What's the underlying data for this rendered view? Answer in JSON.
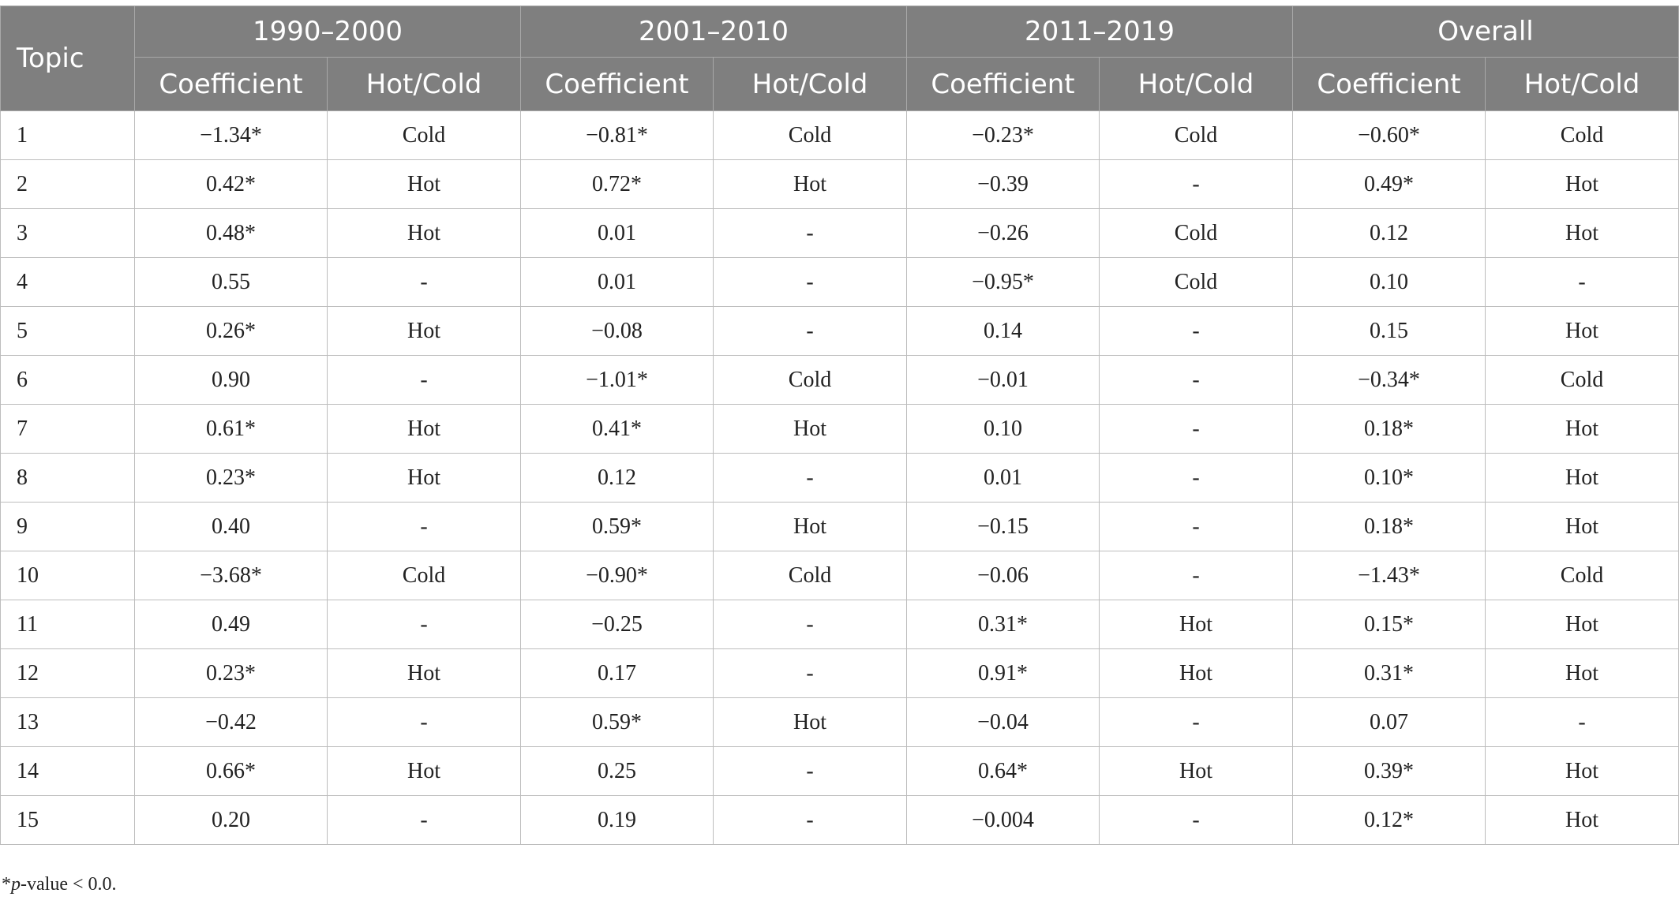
{
  "table": {
    "topic_header": "Topic",
    "groups": [
      "1990–2000",
      "2001–2010",
      "2011–2019",
      "Overall"
    ],
    "subheaders": [
      "Coefficient",
      "Hot/Cold",
      "Coefficient",
      "Hot/Cold",
      "Coefficient",
      "Hot/Cold",
      "Coefficient",
      "Hot/Cold"
    ],
    "rows": [
      [
        "1",
        "−1.34*",
        "Cold",
        "−0.81*",
        "Cold",
        "−0.23*",
        "Cold",
        "−0.60*",
        "Cold"
      ],
      [
        "2",
        "0.42*",
        "Hot",
        "0.72*",
        "Hot",
        "−0.39",
        "-",
        "0.49*",
        "Hot"
      ],
      [
        "3",
        "0.48*",
        "Hot",
        "0.01",
        "-",
        "−0.26",
        "Cold",
        "0.12",
        "Hot"
      ],
      [
        "4",
        "0.55",
        "-",
        "0.01",
        "-",
        "−0.95*",
        "Cold",
        "0.10",
        "-"
      ],
      [
        "5",
        "0.26*",
        "Hot",
        "−0.08",
        "-",
        "0.14",
        "-",
        "0.15",
        "Hot"
      ],
      [
        "6",
        "0.90",
        "-",
        "−1.01*",
        "Cold",
        "−0.01",
        "-",
        "−0.34*",
        "Cold"
      ],
      [
        "7",
        "0.61*",
        "Hot",
        "0.41*",
        "Hot",
        "0.10",
        "-",
        "0.18*",
        "Hot"
      ],
      [
        "8",
        "0.23*",
        "Hot",
        "0.12",
        "-",
        "0.01",
        "-",
        "0.10*",
        "Hot"
      ],
      [
        "9",
        "0.40",
        "-",
        "0.59*",
        "Hot",
        "−0.15",
        "-",
        "0.18*",
        "Hot"
      ],
      [
        "10",
        "−3.68*",
        "Cold",
        "−0.90*",
        "Cold",
        "−0.06",
        "-",
        "−1.43*",
        "Cold"
      ],
      [
        "11",
        "0.49",
        "-",
        "−0.25",
        "-",
        "0.31*",
        "Hot",
        "0.15*",
        "Hot"
      ],
      [
        "12",
        "0.23*",
        "Hot",
        "0.17",
        "-",
        "0.91*",
        "Hot",
        "0.31*",
        "Hot"
      ],
      [
        "13",
        "−0.42",
        "-",
        "0.59*",
        "Hot",
        "−0.04",
        "-",
        "0.07",
        "-"
      ],
      [
        "14",
        "0.66*",
        "Hot",
        "0.25",
        "-",
        "0.64*",
        "Hot",
        "0.39*",
        "Hot"
      ],
      [
        "15",
        "0.20",
        "-",
        "0.19",
        "-",
        "−0.004",
        "-",
        "0.12*",
        "Hot"
      ]
    ]
  },
  "footnote": {
    "marker": "*",
    "italic": "p",
    "text": "-value < 0.0."
  }
}
